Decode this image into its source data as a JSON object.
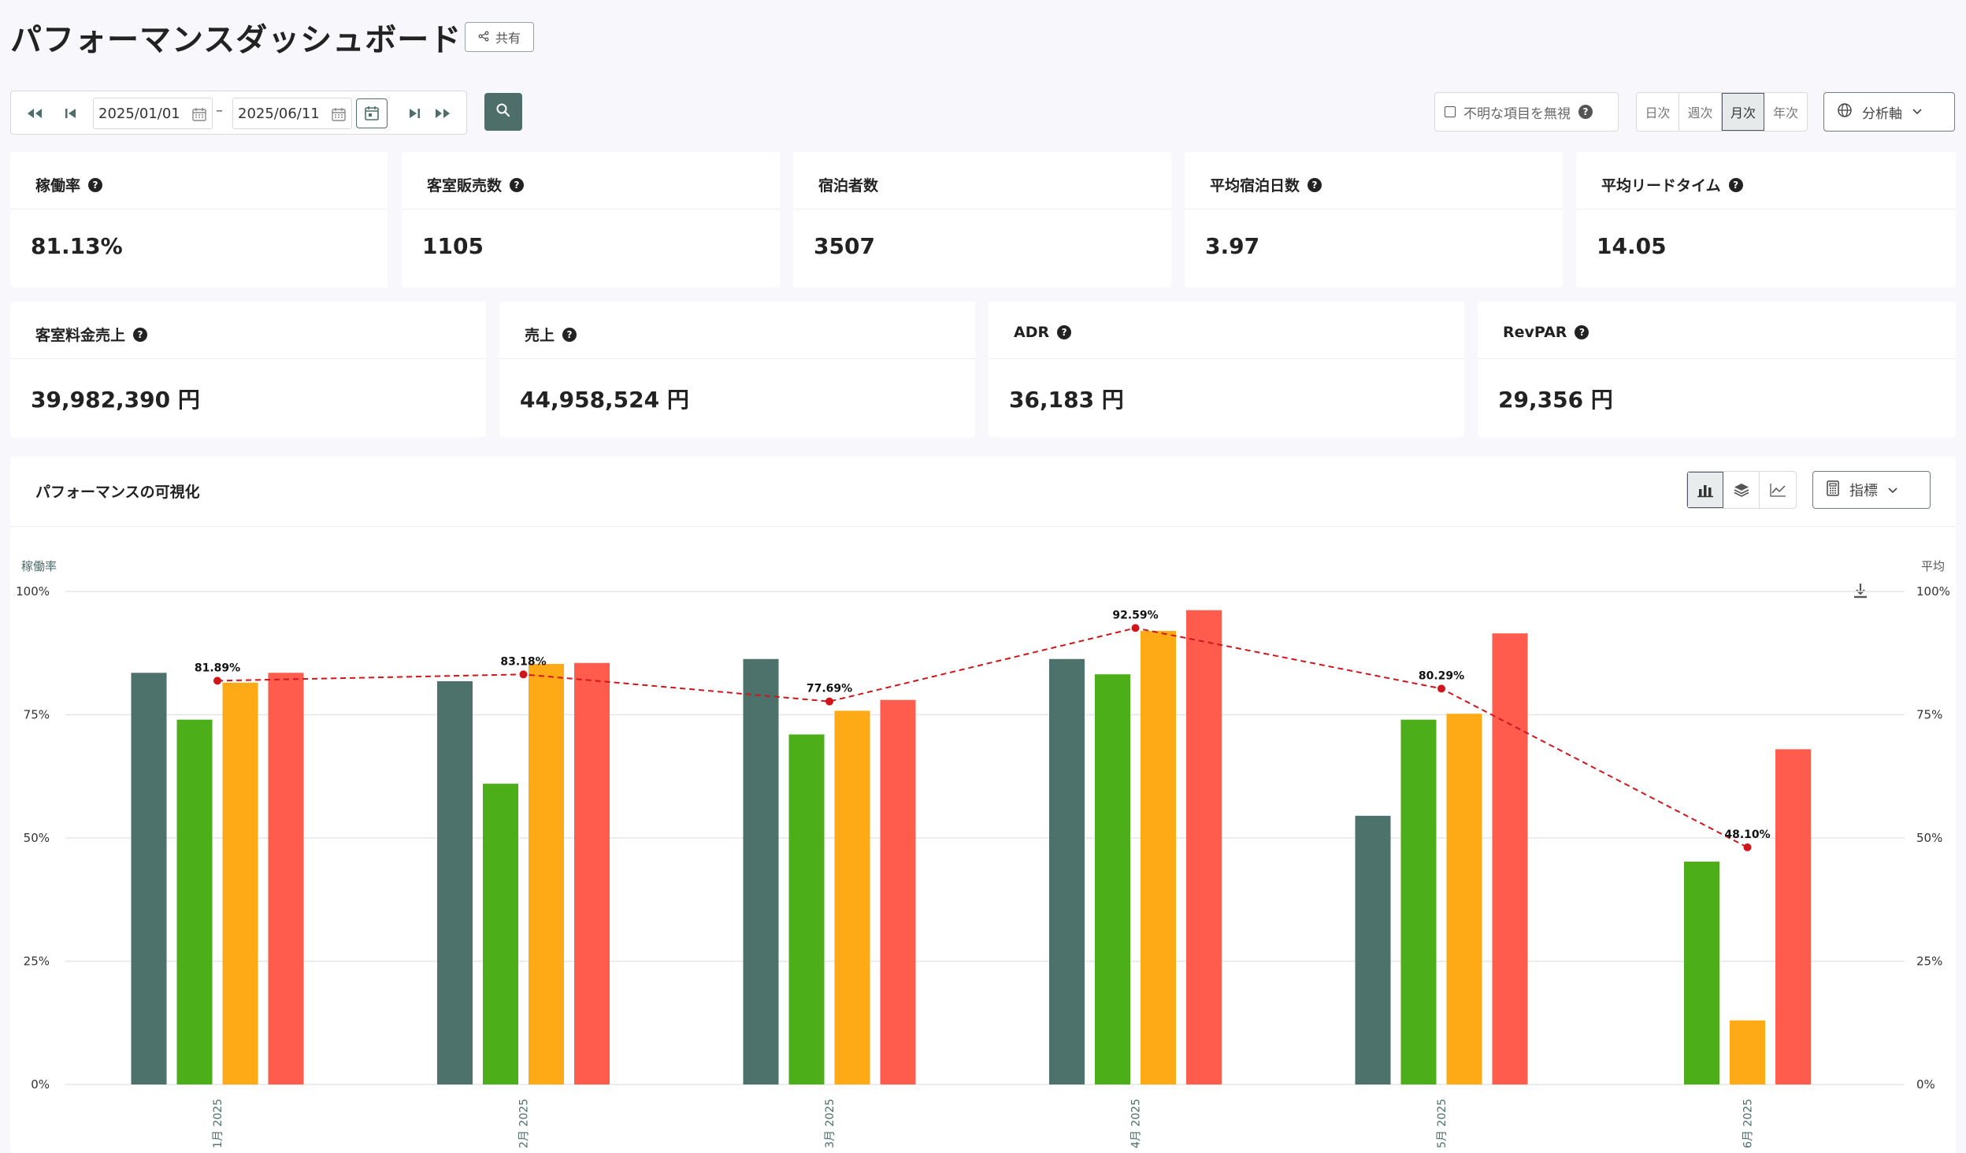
{
  "header": {
    "title": "パフォーマンスダッシュボード",
    "share_label": "共有"
  },
  "filters": {
    "start_date": "2025/01/01",
    "end_date": "2025/06/11",
    "date_separator": "–",
    "ignore_unknown_label": "不明な項目を無視",
    "ignore_unknown_checked": false,
    "periods": [
      "日次",
      "週次",
      "月次",
      "年次"
    ],
    "active_period": "月次",
    "analysis_axis_label": "分析軸"
  },
  "kpis_row1": [
    {
      "label": "稼働率",
      "value": "81.13%",
      "help": true
    },
    {
      "label": "客室販売数",
      "value": "1105",
      "help": true
    },
    {
      "label": "宿泊者数",
      "value": "3507",
      "help": false
    },
    {
      "label": "平均宿泊日数",
      "value": "3.97",
      "help": true
    },
    {
      "label": "平均リードタイム",
      "value": "14.05",
      "help": true
    }
  ],
  "kpis_row2": [
    {
      "label": "客室料金売上",
      "value": "39,982,390 円",
      "help": true
    },
    {
      "label": "売上",
      "value": "44,958,524 円",
      "help": true
    },
    {
      "label": "ADR",
      "value": "36,183 円",
      "help": true
    },
    {
      "label": "RevPAR",
      "value": "29,356 円",
      "help": true
    }
  ],
  "chart_section": {
    "title": "パフォーマンスの可視化",
    "metric_label": "指標",
    "active_chart_type": "bar"
  },
  "chart_data": {
    "type": "bar",
    "ylabel": "稼働率",
    "y2label": "平均",
    "ylim": [
      0,
      100
    ],
    "yticks": [
      "0%",
      "25%",
      "50%",
      "75%",
      "100%"
    ],
    "grid": true,
    "categories": [
      "1月 2025",
      "2月 2025",
      "3月 2025",
      "4月 2025",
      "5月 2025",
      "6月 2025"
    ],
    "series": [
      {
        "color": "#4d716b",
        "values": [
          83.5,
          81.8,
          86.3,
          86.3,
          54.5,
          null
        ]
      },
      {
        "color": "#4caf1a",
        "values": [
          74.0,
          61.0,
          71.0,
          83.2,
          74.0,
          45.2
        ]
      },
      {
        "color": "#fdaa16",
        "values": [
          81.5,
          85.3,
          75.8,
          92.0,
          75.2,
          13.0
        ]
      },
      {
        "color": "#ff5c4d",
        "values": [
          83.5,
          85.5,
          78.0,
          96.2,
          91.5,
          68.0
        ]
      }
    ],
    "average_line": {
      "color": "#d0161a",
      "values": [
        81.89,
        83.18,
        77.69,
        92.59,
        80.29,
        48.1
      ],
      "labels": [
        "81.89%",
        "83.18%",
        "77.69%",
        "92.59%",
        "80.29%",
        "48.10%"
      ]
    }
  }
}
